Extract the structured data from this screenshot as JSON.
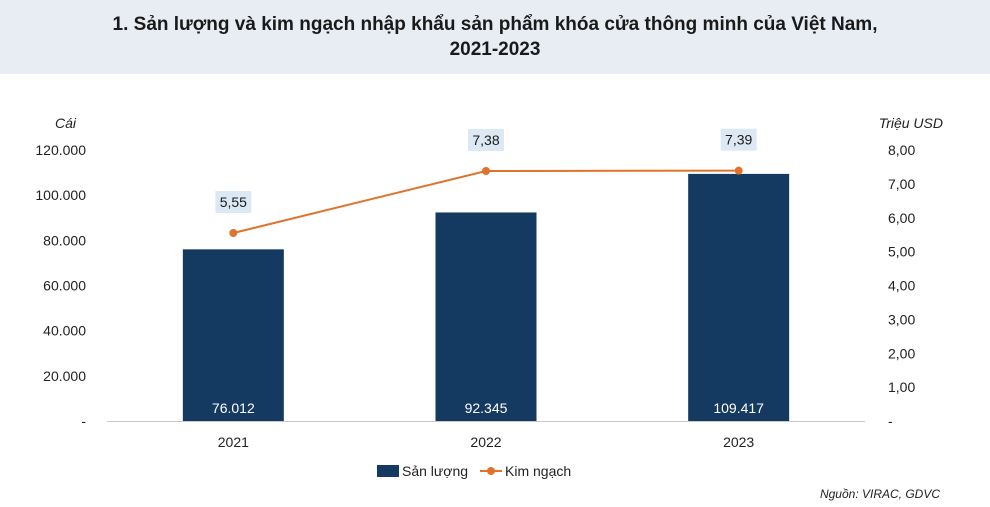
{
  "title_line1": "1. Sản lượng và kim ngạch nhập khẩu sản phẩm khóa cửa thông minh của Việt Nam,",
  "title_line2": "2021-2023",
  "source": "Nguồn: VIRAC, GDVC",
  "colors": {
    "bar": "#153a61",
    "line": "#e0732b",
    "label_bg": "#dce9f5",
    "title_bg": "#e8ecf3"
  },
  "chart_data": {
    "type": "bar+line",
    "categories": [
      "2021",
      "2022",
      "2023"
    ],
    "series": [
      {
        "name": "Sản lượng",
        "type": "bar",
        "axis": "left",
        "values": [
          76012,
          92345,
          109417
        ],
        "labels": [
          "76.012",
          "92.345",
          "109.417"
        ]
      },
      {
        "name": "Kim ngạch",
        "type": "line",
        "axis": "right",
        "values": [
          5.55,
          7.38,
          7.39
        ],
        "labels": [
          "5,55",
          "7,38",
          "7,39"
        ]
      }
    ],
    "y_left": {
      "unit": "Cái",
      "range": [
        0,
        120000
      ],
      "ticks": [
        0,
        20000,
        40000,
        60000,
        80000,
        100000,
        120000
      ],
      "tick_labels": [
        "-",
        "20.000",
        "40.000",
        "60.000",
        "80.000",
        "100.000",
        "120.000"
      ]
    },
    "y_right": {
      "unit": "Triệu USD",
      "range": [
        0,
        8
      ],
      "ticks": [
        0,
        1,
        2,
        3,
        4,
        5,
        6,
        7,
        8
      ],
      "tick_labels": [
        "-",
        "1,00",
        "2,00",
        "3,00",
        "4,00",
        "5,00",
        "6,00",
        "7,00",
        "8,00"
      ]
    },
    "legend_position": "bottom",
    "grid": false
  }
}
